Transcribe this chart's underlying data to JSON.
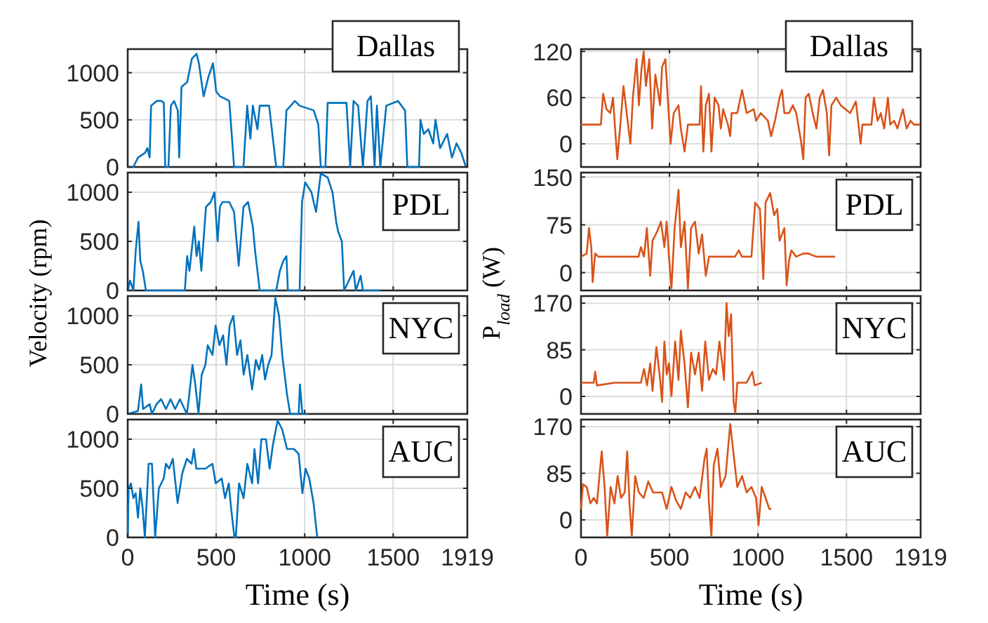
{
  "chart_data": [
    {
      "type": "line",
      "annotations": [
        "Dallas"
      ],
      "xlim": [
        0,
        1919
      ],
      "xticks": [
        0,
        500,
        1000,
        1500,
        1919
      ],
      "ylim": [
        0,
        1250
      ],
      "yticks": [
        0,
        500,
        1000
      ],
      "grid": true,
      "tick_labels": "y",
      "series": [
        {
          "color": "#0072bd",
          "x": [
            0,
            32,
            58,
            98,
            111,
            124,
            132,
            164,
            191,
            204,
            212,
            230,
            244,
            262,
            283,
            291,
            304,
            336,
            363,
            389,
            402,
            429,
            455,
            482,
            500,
            521,
            574,
            601,
            654,
            675,
            693,
            707,
            733,
            746,
            773,
            799,
            839,
            879,
            897,
            945,
            971,
            1051,
            1077,
            1091,
            1117,
            1130,
            1236,
            1257,
            1276,
            1302,
            1329,
            1355,
            1374,
            1395,
            1408,
            1427,
            1461,
            1527,
            1567,
            1580,
            1646,
            1654,
            1673,
            1699,
            1726,
            1739,
            1765,
            1805,
            1832,
            1858,
            1885,
            1911,
            1919
          ],
          "values": [
            0,
            0,
            100,
            150,
            200,
            100,
            650,
            700,
            700,
            680,
            0,
            0,
            650,
            700,
            600,
            100,
            850,
            900,
            1150,
            1200,
            1100,
            750,
            950,
            1100,
            800,
            750,
            700,
            0,
            0,
            650,
            300,
            650,
            400,
            650,
            650,
            650,
            0,
            0,
            600,
            700,
            650,
            600,
            450,
            0,
            0,
            680,
            680,
            0,
            700,
            650,
            0,
            700,
            750,
            0,
            650,
            0,
            650,
            700,
            600,
            0,
            0,
            500,
            350,
            400,
            250,
            500,
            200,
            350,
            100,
            250,
            150,
            0,
            0
          ]
        }
      ]
    },
    {
      "type": "line",
      "annotations": [
        "PDL"
      ],
      "ylabel": "Velocity (rpm)",
      "xlim": [
        0,
        1919
      ],
      "xticks": [
        0,
        500,
        1000,
        1500,
        1919
      ],
      "ylim": [
        0,
        1200
      ],
      "yticks": [
        0,
        500,
        1000
      ],
      "grid": true,
      "tick_labels": "y",
      "series": [
        {
          "color": "#0072bd",
          "x": [
            0,
            13,
            32,
            45,
            61,
            71,
            85,
            103,
            323,
            336,
            349,
            376,
            389,
            402,
            416,
            442,
            469,
            490,
            508,
            521,
            535,
            574,
            601,
            627,
            654,
            680,
            707,
            720,
            746,
            760,
            799,
            839,
            860,
            879,
            897,
            905,
            971,
            985,
            1003,
            1038,
            1064,
            1091,
            1130,
            1157,
            1178,
            1189,
            1210,
            1223,
            1276,
            1289,
            1316,
            1329,
            1427
          ],
          "values": [
            0,
            100,
            0,
            400,
            700,
            300,
            200,
            0,
            0,
            350,
            200,
            650,
            350,
            500,
            200,
            850,
            900,
            1000,
            500,
            850,
            900,
            900,
            800,
            250,
            850,
            900,
            650,
            400,
            0,
            0,
            0,
            0,
            200,
            300,
            350,
            0,
            0,
            900,
            1100,
            1000,
            800,
            1190,
            1150,
            1000,
            700,
            600,
            500,
            0,
            200,
            0,
            150,
            0,
            0
          ]
        }
      ]
    },
    {
      "type": "line",
      "annotations": [
        "NYC"
      ],
      "xlim": [
        0,
        1919
      ],
      "xticks": [
        0,
        500,
        1000,
        1500,
        1919
      ],
      "ylim": [
        0,
        1200
      ],
      "yticks": [
        0,
        500,
        1000
      ],
      "grid": true,
      "tick_labels": "y",
      "series": [
        {
          "color": "#0072bd",
          "x": [
            0,
            58,
            76,
            87,
            124,
            137,
            163,
            189,
            216,
            242,
            268,
            295,
            334,
            345,
            366,
            382,
            400,
            418,
            439,
            452,
            479,
            497,
            518,
            539,
            558,
            576,
            597,
            618,
            637,
            655,
            676,
            703,
            724,
            742,
            760,
            776,
            794,
            813,
            834,
            855,
            873,
            900,
            918,
            966,
            973,
            987,
            1018
          ],
          "values": [
            0,
            30,
            300,
            50,
            100,
            0,
            100,
            150,
            50,
            150,
            50,
            150,
            0,
            150,
            500,
            300,
            0,
            400,
            500,
            700,
            600,
            900,
            700,
            800,
            500,
            900,
            1000,
            600,
            750,
            400,
            600,
            250,
            550,
            450,
            600,
            350,
            500,
            600,
            1180,
            1000,
            600,
            200,
            0,
            0,
            300,
            0,
            0
          ]
        }
      ]
    },
    {
      "type": "line",
      "annotations": [
        "AUC"
      ],
      "xlabel": "Time (s)",
      "xlim": [
        0,
        1919
      ],
      "xticks": [
        0,
        500,
        1000,
        1500,
        1919
      ],
      "ylim": [
        0,
        1200
      ],
      "yticks": [
        0,
        500,
        1000
      ],
      "grid": true,
      "series": [
        {
          "color": "#0072bd",
          "x": [
            0,
            5,
            18,
            32,
            45,
            58,
            71,
            84,
            97,
            118,
            137,
            155,
            176,
            203,
            216,
            234,
            255,
            282,
            308,
            334,
            361,
            374,
            387,
            439,
            479,
            497,
            531,
            550,
            571,
            584,
            603,
            611,
            629,
            655,
            676,
            703,
            716,
            737,
            755,
            781,
            802,
            821,
            847,
            873,
            900,
            939,
            966,
            987,
            1005,
            1026,
            1050,
            1071
          ],
          "values": [
            0,
            500,
            550,
            400,
            450,
            200,
            500,
            300,
            0,
            750,
            750,
            0,
            500,
            600,
            750,
            700,
            800,
            350,
            650,
            800,
            750,
            900,
            700,
            700,
            750,
            550,
            600,
            400,
            550,
            300,
            0,
            0,
            550,
            400,
            750,
            550,
            900,
            550,
            1000,
            1000,
            700,
            950,
            1190,
            1100,
            900,
            900,
            850,
            450,
            700,
            600,
            350,
            0
          ]
        }
      ]
    },
    {
      "type": "line",
      "annotations": [
        "Dallas"
      ],
      "xlim": [
        0,
        1919
      ],
      "xticks": [
        0,
        500,
        1000,
        1500,
        1919
      ],
      "ylim": [
        -30,
        123
      ],
      "yticks": [
        0,
        60,
        120
      ],
      "grid": true,
      "tick_labels": "y",
      "series": [
        {
          "color": "#d95319",
          "x": [
            0,
            112,
            125,
            144,
            165,
            181,
            191,
            205,
            224,
            240,
            258,
            279,
            293,
            314,
            327,
            341,
            354,
            367,
            386,
            402,
            420,
            447,
            458,
            477,
            490,
            506,
            524,
            551,
            564,
            585,
            604,
            670,
            678,
            691,
            705,
            723,
            737,
            755,
            777,
            790,
            803,
            830,
            843,
            851,
            883,
            910,
            936,
            976,
            989,
            1016,
            1056,
            1074,
            1096,
            1122,
            1136,
            1149,
            1176,
            1197,
            1216,
            1242,
            1256,
            1269,
            1287,
            1309,
            1330,
            1349,
            1367,
            1389,
            1402,
            1415,
            1442,
            1468,
            1521,
            1553,
            1580,
            1590,
            1641,
            1655,
            1676,
            1694,
            1713,
            1734,
            1747,
            1769,
            1788,
            1819,
            1840,
            1862,
            1881,
            1915
          ],
          "values": [
            25,
            25,
            65,
            45,
            40,
            60,
            25,
            -20,
            30,
            75,
            40,
            0,
            60,
            110,
            50,
            95,
            120,
            75,
            110,
            20,
            90,
            50,
            100,
            110,
            60,
            0,
            40,
            50,
            20,
            -10,
            25,
            25,
            75,
            -10,
            50,
            65,
            -10,
            60,
            50,
            20,
            45,
            25,
            10,
            40,
            40,
            70,
            40,
            45,
            30,
            40,
            30,
            10,
            30,
            60,
            70,
            40,
            40,
            50,
            40,
            5,
            -20,
            60,
            65,
            40,
            20,
            60,
            70,
            40,
            -15,
            50,
            60,
            50,
            40,
            55,
            0,
            25,
            25,
            60,
            30,
            40,
            20,
            60,
            25,
            30,
            20,
            45,
            20,
            30,
            25,
            25
          ]
        }
      ]
    },
    {
      "type": "line",
      "annotations": [
        "PDL"
      ],
      "ylabel": "P$_{load}$ (W)",
      "xlim": [
        0,
        1919
      ],
      "xticks": [
        0,
        500,
        1000,
        1500,
        1919
      ],
      "ylim": [
        -28,
        157
      ],
      "yticks": [
        0,
        75,
        150
      ],
      "grid": true,
      "tick_labels": "y",
      "series": [
        {
          "color": "#d95319",
          "x": [
            0,
            32,
            45,
            58,
            66,
            80,
            98,
            325,
            338,
            356,
            372,
            391,
            404,
            431,
            452,
            471,
            484,
            497,
            511,
            529,
            551,
            564,
            585,
            604,
            622,
            644,
            665,
            684,
            705,
            723,
            870,
            891,
            910,
            963,
            984,
            1011,
            1030,
            1043,
            1069,
            1091,
            1109,
            1122,
            1149,
            1162,
            1176,
            1189,
            1216,
            1256,
            1282,
            1330,
            1436
          ],
          "values": [
            25,
            30,
            70,
            40,
            -15,
            30,
            25,
            25,
            40,
            25,
            70,
            -5,
            50,
            65,
            80,
            40,
            80,
            25,
            -25,
            70,
            130,
            40,
            80,
            -25,
            70,
            80,
            30,
            60,
            -5,
            25,
            25,
            35,
            25,
            25,
            110,
            100,
            -10,
            110,
            125,
            90,
            100,
            50,
            70,
            -20,
            20,
            35,
            25,
            30,
            30,
            25,
            25
          ]
        }
      ]
    },
    {
      "type": "line",
      "annotations": [
        "NYC"
      ],
      "xlim": [
        0,
        1919
      ],
      "xticks": [
        0,
        500,
        1000,
        1500,
        1919
      ],
      "ylim": [
        -32,
        183
      ],
      "yticks": [
        0,
        85,
        170
      ],
      "grid": true,
      "tick_labels": "y",
      "series": [
        {
          "color": "#d95319",
          "x": [
            0,
            72,
            80,
            90,
            191,
            245,
            338,
            356,
            373,
            391,
            404,
            426,
            444,
            458,
            471,
            484,
            497,
            511,
            532,
            551,
            564,
            585,
            604,
            622,
            644,
            665,
            684,
            702,
            723,
            745,
            763,
            782,
            798,
            808,
            822,
            835,
            848,
            862,
            872,
            883,
            936,
            968,
            981,
            1021
          ],
          "values": [
            25,
            25,
            45,
            20,
            25,
            25,
            25,
            50,
            20,
            60,
            10,
            90,
            40,
            -10,
            100,
            40,
            60,
            0,
            100,
            30,
            120,
            60,
            -20,
            80,
            40,
            80,
            10,
            100,
            30,
            50,
            40,
            100,
            60,
            30,
            170,
            110,
            150,
            -10,
            -30,
            25,
            25,
            45,
            20,
            25
          ]
        }
      ]
    },
    {
      "type": "line",
      "annotations": [
        "AUC"
      ],
      "xlabel": "Time (s)",
      "xlim": [
        0,
        1919
      ],
      "xticks": [
        0,
        500,
        1000,
        1500,
        1919
      ],
      "ylim": [
        -32,
        183
      ],
      "yticks": [
        0,
        85,
        170
      ],
      "grid": true,
      "series": [
        {
          "color": "#d95319",
          "x": [
            0,
            11,
            32,
            53,
            72,
            90,
            117,
            133,
            148,
            167,
            189,
            207,
            226,
            247,
            261,
            274,
            287,
            306,
            327,
            354,
            380,
            407,
            458,
            484,
            511,
            538,
            564,
            591,
            617,
            644,
            670,
            697,
            710,
            723,
            737,
            750,
            771,
            790,
            817,
            843,
            862,
            883,
            910,
            936,
            963,
            989,
            1003,
            1021,
            1043,
            1064,
            1075
          ],
          "values": [
            20,
            65,
            60,
            30,
            40,
            30,
            125,
            60,
            -30,
            60,
            30,
            80,
            40,
            50,
            125,
            30,
            -30,
            80,
            50,
            40,
            70,
            50,
            50,
            20,
            60,
            35,
            20,
            50,
            40,
            60,
            40,
            110,
            130,
            30,
            -30,
            100,
            130,
            60,
            80,
            175,
            120,
            60,
            80,
            50,
            60,
            40,
            -10,
            60,
            40,
            20,
            20
          ]
        }
      ]
    }
  ]
}
